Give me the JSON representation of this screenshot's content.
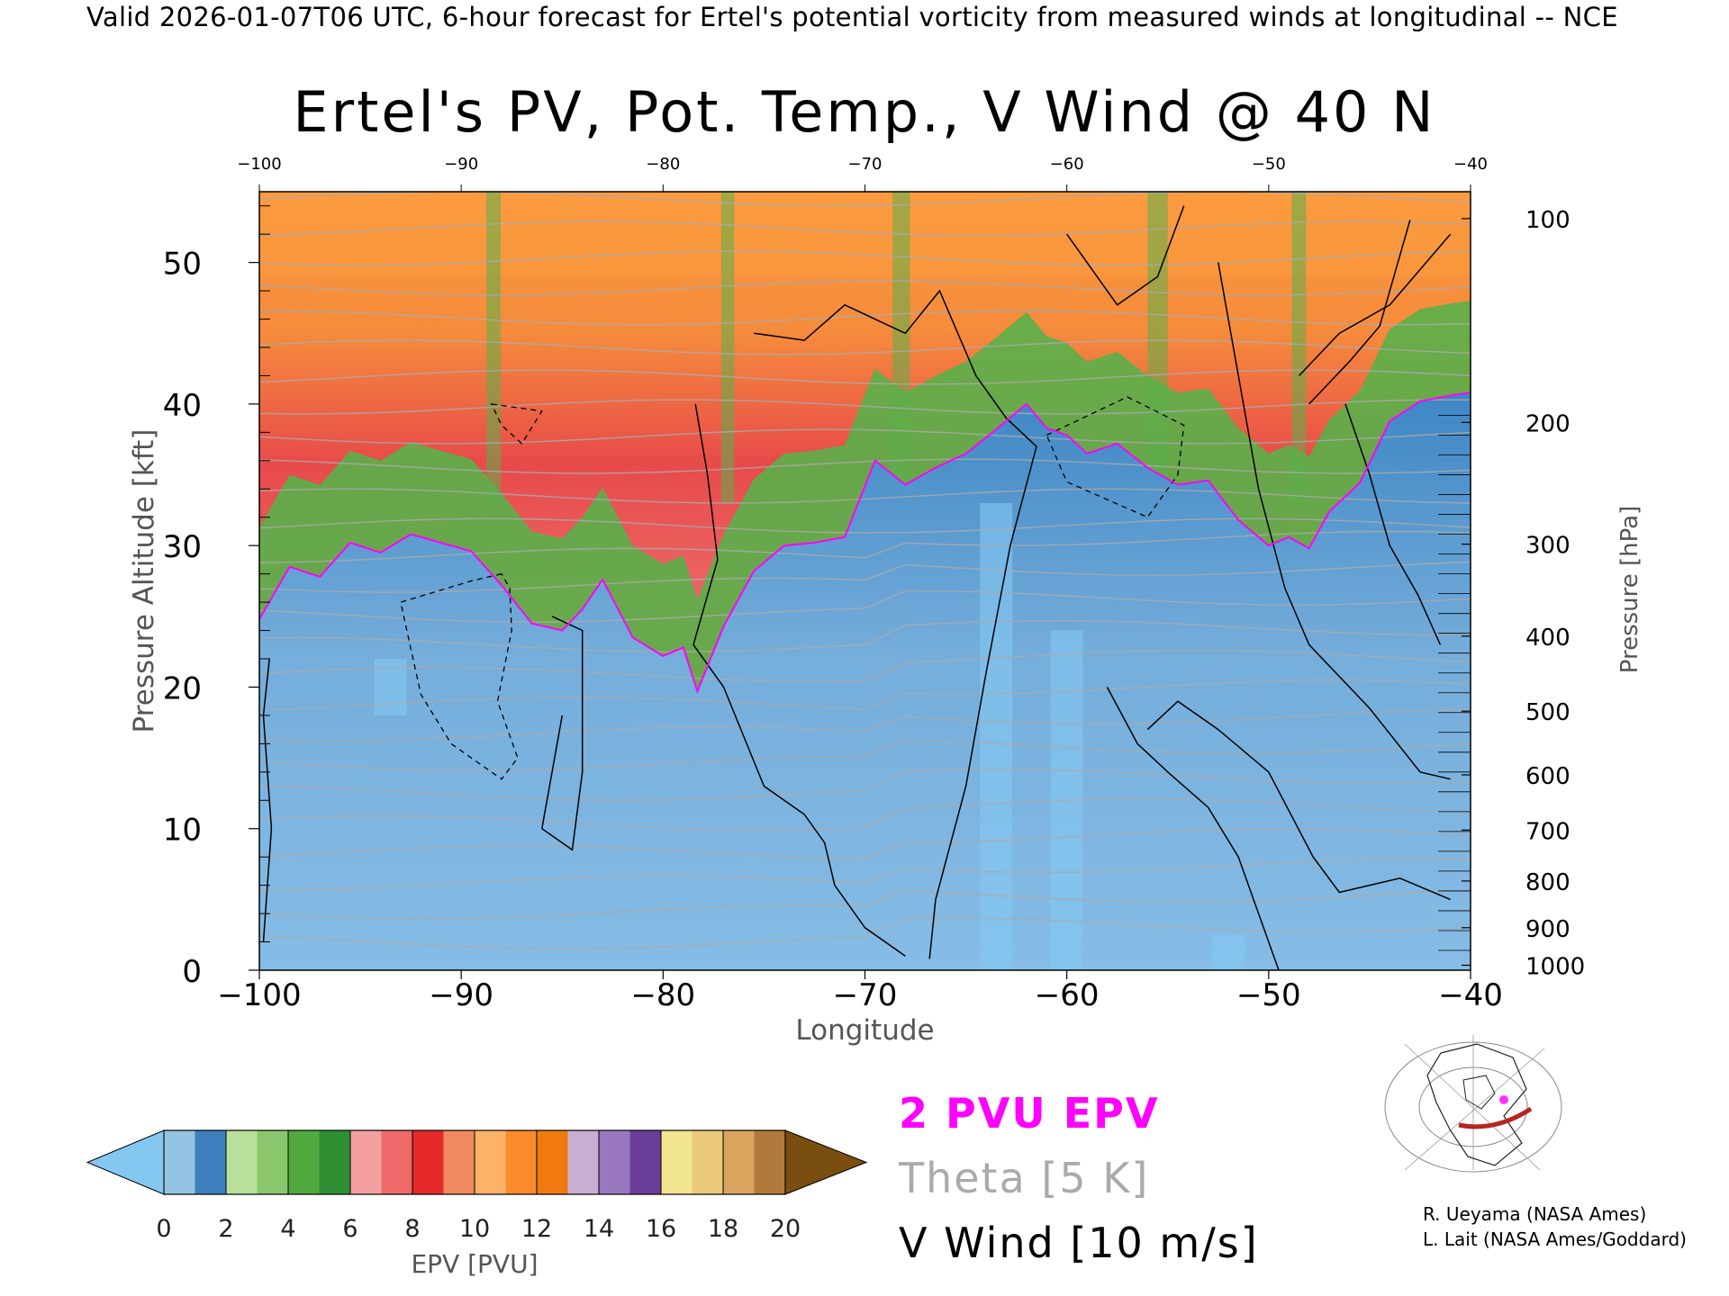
{
  "header": {
    "text": "Valid 2026-01-07T06 UTC, 6-hour forecast for Ertel's potential vorticity from measured winds at longitudinal -- NCE"
  },
  "chart_data": {
    "type": "heatmap",
    "title": "Ertel's PV, Pot. Temp., V Wind @ 40 N",
    "xlabel": "Longitude",
    "ylabel": "Pressure Altitude [kft]",
    "ylabel_right": "Pressure [hPa]",
    "xlim": [
      -100,
      -40
    ],
    "ylim": [
      0,
      55
    ],
    "x_ticks": [
      "-100",
      "-90",
      "-80",
      "-70",
      "-60",
      "-50",
      "-40"
    ],
    "y_ticks": [
      "0",
      "10",
      "20",
      "30",
      "40",
      "50"
    ],
    "pressure_ticks": [
      {
        "label": "1000",
        "kft": 0.35
      },
      {
        "label": "900",
        "kft": 3.0
      },
      {
        "label": "800",
        "kft": 6.3
      },
      {
        "label": "700",
        "kft": 9.9
      },
      {
        "label": "600",
        "kft": 13.8
      },
      {
        "label": "500",
        "kft": 18.3
      },
      {
        "label": "400",
        "kft": 23.6
      },
      {
        "label": "300",
        "kft": 30.1
      },
      {
        "label": "200",
        "kft": 38.7
      },
      {
        "label": "100",
        "kft": 53.1
      }
    ],
    "tropopause_2pvu": {
      "lon": [
        -100,
        -98.5,
        -97,
        -95.5,
        -94,
        -92.5,
        -91,
        -89.5,
        -88,
        -86.5,
        -85,
        -84,
        -83,
        -81.5,
        -80,
        -79,
        -78.3,
        -77,
        -75.5,
        -74,
        -72.5,
        -71,
        -69.5,
        -68,
        -66.5,
        -65,
        -63.5,
        -62,
        -61,
        -60,
        -59,
        -57.5,
        -56,
        -54.5,
        -53,
        -51.5,
        -50,
        -49,
        -48,
        -47,
        -45.5,
        -44,
        -42.5,
        -41,
        -40
      ],
      "kft": [
        24.8,
        28.5,
        27.8,
        30.2,
        29.5,
        30.8,
        30.2,
        29.6,
        27.2,
        24.5,
        24.0,
        25.5,
        27.6,
        23.5,
        22.2,
        22.8,
        19.7,
        24.3,
        28.2,
        30.0,
        30.2,
        30.6,
        36.0,
        34.3,
        35.5,
        36.5,
        38.2,
        40.0,
        38.3,
        37.8,
        36.5,
        37.2,
        35.5,
        34.3,
        34.6,
        31.8,
        30.0,
        30.6,
        29.8,
        32.4,
        34.4,
        38.8,
        40.2,
        40.6,
        40.8
      ]
    },
    "colorbar": {
      "label": "EPV [PVU]",
      "ticks": [
        "0",
        "2",
        "4",
        "6",
        "8",
        "10",
        "12",
        "14",
        "16",
        "18",
        "20"
      ],
      "levels": [
        0,
        1,
        2,
        3,
        4,
        5,
        6,
        7,
        8,
        9,
        10,
        11,
        12,
        13,
        14,
        15,
        16,
        17,
        18,
        19,
        20
      ],
      "under_color": "#84c8f2",
      "over_color": "#7a4e0e",
      "colors": [
        "#93c3e2",
        "#3e7fbe",
        "#b9e09a",
        "#8ac66c",
        "#52a93f",
        "#2f8f33",
        "#f4a0a0",
        "#ef6b6b",
        "#e52828",
        "#f08a5e",
        "#fdb26a",
        "#fa8a2a",
        "#f07a10",
        "#c9aed4",
        "#9a78c0",
        "#6a3d98",
        "#f2e58f",
        "#eac97a",
        "#d9a45e",
        "#b27a3a"
      ]
    },
    "legend": {
      "pv2": "2 PVU EPV",
      "theta": "Theta [5 K]",
      "vwind": "V Wind [10 m/s]"
    },
    "grid": false,
    "colors": {
      "tropopause": "#ff00ff",
      "theta": "#aaaaaa",
      "vwind": "#000000",
      "troposphere": "#6ea9d6",
      "stratosphere_low": "#5ab04a",
      "stratosphere_mid": "#e84a4a",
      "stratosphere_high": "#fb9a3e"
    }
  },
  "credits": {
    "line1": "R. Ueyama (NASA Ames)",
    "line2": "L. Lait (NASA Ames/Goddard)"
  }
}
